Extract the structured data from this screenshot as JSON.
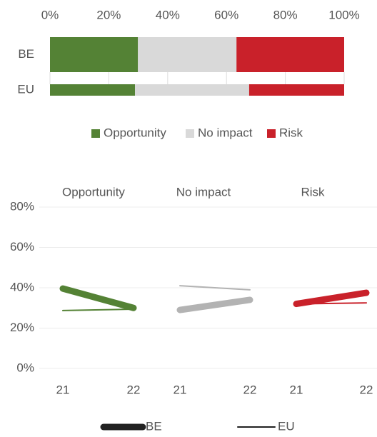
{
  "chart_data": [
    {
      "type": "bar",
      "orientation": "horizontal",
      "stacked": true,
      "categories": [
        "BE",
        "EU"
      ],
      "series": [
        {
          "name": "Opportunity",
          "color": "#548235",
          "values": [
            29.9,
            28.9
          ]
        },
        {
          "name": "No impact",
          "color": "#d9d9d9",
          "values": [
            33.5,
            38.8
          ]
        },
        {
          "name": "Risk",
          "color": "#c9212a",
          "values": [
            36.6,
            32.3
          ]
        }
      ],
      "xlim": [
        0,
        100
      ],
      "xticks": [
        {
          "value": 0,
          "label": "0%"
        },
        {
          "value": 20,
          "label": "20%"
        },
        {
          "value": 40,
          "label": "40%"
        },
        {
          "value": 60,
          "label": "60%"
        },
        {
          "value": 80,
          "label": "80%"
        },
        {
          "value": 100,
          "label": "100%"
        }
      ],
      "grid": true,
      "legend": "bottom"
    },
    {
      "type": "line",
      "groups": [
        "Opportunity",
        "No impact",
        "Risk"
      ],
      "group_colors": [
        "#548235",
        "#b3b3b3",
        "#c9212a"
      ],
      "categories": [
        "21",
        "22",
        "21",
        "22",
        "21",
        "22"
      ],
      "series": [
        {
          "name": "BE",
          "color": "#222222",
          "line_width": 9,
          "values": [
            39.6,
            30,
            29,
            34,
            32,
            37.5
          ]
        },
        {
          "name": "EU",
          "color": "#222222",
          "line_width": 2,
          "values": [
            28.7,
            29.4,
            41,
            39,
            32,
            32.5
          ]
        }
      ],
      "ylim": [
        0,
        80
      ],
      "yticks": [
        {
          "value": 0,
          "label": "0%"
        },
        {
          "value": 20,
          "label": "20%"
        },
        {
          "value": 40,
          "label": "40%"
        },
        {
          "value": 60,
          "label": "60%"
        },
        {
          "value": 80,
          "label": "80%"
        }
      ],
      "grid": true,
      "legend": "bottom"
    }
  ]
}
